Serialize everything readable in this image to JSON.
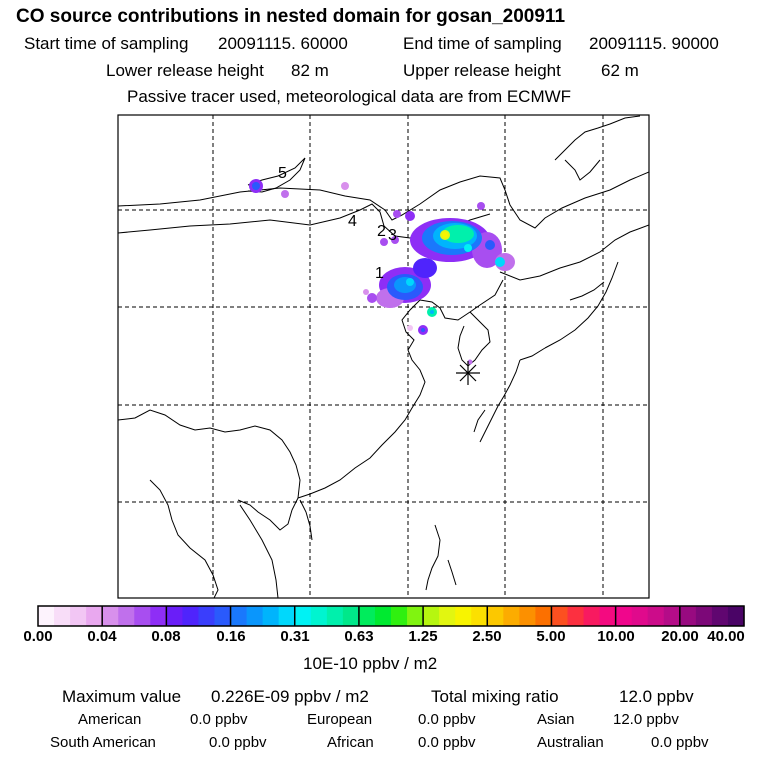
{
  "header": {
    "title": "CO  source contributions in nested domain for gosan_200911",
    "start_label": "Start time of sampling",
    "start_value": "20091115. 60000",
    "end_label": "End time of sampling",
    "end_value": "20091115. 90000",
    "lower_label": "Lower release height",
    "lower_value": "82 m",
    "upper_label": "Upper release height",
    "upper_value": "62 m",
    "note": "Passive tracer used, meteorological data are from ECMWF"
  },
  "chart_data": {
    "type": "heatmap",
    "title": "CO  source contributions in nested domain for gosan_200911",
    "colorbar": {
      "unit_label": "10E-10 ppbv / m2",
      "tick_labels": [
        "0.00",
        "0.04",
        "0.08",
        "0.16",
        "0.31",
        "0.63",
        "1.25",
        "2.50",
        "5.00",
        "10.00",
        "20.00",
        "40.00"
      ],
      "colors": [
        "#fdf3fd",
        "#f8ddf8",
        "#f2c6f4",
        "#e9a8ef",
        "#d890ec",
        "#c070ec",
        "#a84ef0",
        "#8e2ef6",
        "#6a1ef8",
        "#4f24fc",
        "#3a3efc",
        "#2a5afc",
        "#1a78fc",
        "#0a96fc",
        "#00b4fc",
        "#00d8fc",
        "#00f2f4",
        "#00f4d0",
        "#00f0ac",
        "#00e88a",
        "#00ec5c",
        "#00ea30",
        "#30f010",
        "#80f410",
        "#b6f610",
        "#e2f610",
        "#f8f400",
        "#fce000",
        "#fcc800",
        "#fcac00",
        "#fc9000",
        "#fc7000",
        "#fc5020",
        "#fc3040",
        "#f81a60",
        "#f40a80",
        "#f0068c",
        "#e00a8c",
        "#cc0c8a",
        "#b40c88",
        "#980a80",
        "#7c0878",
        "#600670",
        "#4a0466"
      ]
    },
    "source_labels": [
      "1",
      "2",
      "3",
      "4",
      "5"
    ],
    "receptor_marker": "receptor-star"
  },
  "footer": {
    "max_label": "Maximum value",
    "max_value": "0.226E-09 ppbv / m2",
    "total_label": "Total mixing ratio",
    "total_value": "12.0 ppbv",
    "regions": [
      {
        "name": "American",
        "value": "0.0 ppbv"
      },
      {
        "name": "European",
        "value": "0.0 ppbv"
      },
      {
        "name": "Asian",
        "value": "12.0 ppbv"
      },
      {
        "name": "South American",
        "value": "0.0 ppbv"
      },
      {
        "name": "African",
        "value": "0.0 ppbv"
      },
      {
        "name": "Australian",
        "value": "0.0 ppbv"
      }
    ]
  }
}
